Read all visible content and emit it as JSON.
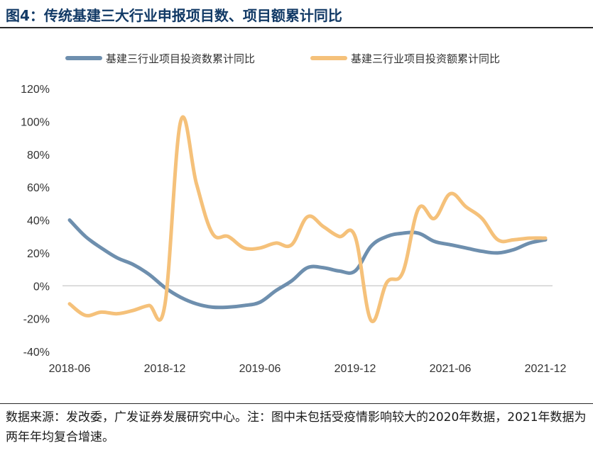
{
  "header": {
    "title": "图4：传统基建三大行业申报项目数、项目额累计同比"
  },
  "footer": {
    "source": "数据来源：发改委，广发证券发展研究中心。注：图中未包括受疫情影响较大的2020年数据，2021年数据为两年年均复合增速。"
  },
  "colors": {
    "series_count": "#6e8fae",
    "series_amount": "#f5c17a",
    "zero_line": "#d0d0d0",
    "axis_text": "#333333"
  },
  "chart_data": {
    "type": "line",
    "title": "传统基建三大行业申报项目数、项目额累计同比",
    "xlabel": "",
    "ylabel": "",
    "ylim": [
      -0.4,
      1.2
    ],
    "y_ticks": [
      "-40%",
      "-20%",
      "0%",
      "20%",
      "40%",
      "60%",
      "80%",
      "100%",
      "120%"
    ],
    "x_tick_labels": [
      "2018-06",
      "2018-12",
      "2019-06",
      "2019-12",
      "2021-06",
      "2021-12"
    ],
    "legend_position": "top",
    "grid": false,
    "x": [
      "2018-06",
      "2018-07",
      "2018-08",
      "2018-09",
      "2018-10",
      "2018-11",
      "2018-12",
      "2019-01",
      "2019-02",
      "2019-03",
      "2019-04",
      "2019-05",
      "2019-06",
      "2019-07",
      "2019-08",
      "2019-09",
      "2019-10",
      "2019-11",
      "2019-12",
      "2021-01",
      "2021-02",
      "2021-03",
      "2021-04",
      "2021-05",
      "2021-06",
      "2021-07",
      "2021-08",
      "2021-09",
      "2021-10",
      "2021-11",
      "2021-12"
    ],
    "series": [
      {
        "name": "基建三行业项目投资数累计同比",
        "values": [
          0.4,
          0.3,
          0.23,
          0.17,
          0.13,
          0.07,
          -0.01,
          -0.07,
          -0.11,
          -0.13,
          -0.13,
          -0.12,
          -0.1,
          -0.03,
          0.03,
          0.11,
          0.11,
          0.09,
          0.09,
          0.24,
          0.3,
          0.32,
          0.32,
          0.27,
          0.25,
          0.23,
          0.21,
          0.2,
          0.22,
          0.26,
          0.28
        ]
      },
      {
        "name": "基建三行业项目投资额累计同比",
        "values": [
          -0.11,
          -0.18,
          -0.16,
          -0.17,
          -0.15,
          -0.12,
          -0.12,
          1.0,
          0.62,
          0.32,
          0.3,
          0.23,
          0.23,
          0.26,
          0.25,
          0.42,
          0.36,
          0.3,
          0.3,
          -0.21,
          0.02,
          0.08,
          0.47,
          0.41,
          0.56,
          0.48,
          0.41,
          0.28,
          0.28,
          0.29,
          0.29
        ]
      }
    ]
  }
}
